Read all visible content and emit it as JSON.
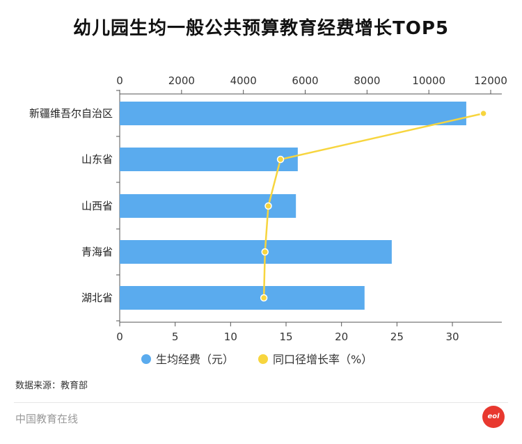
{
  "chart_data": {
    "type": "bar+line",
    "title": "幼儿园生均一般公共预算教育经费增长TOP5",
    "categories": [
      "新疆维吾尔自治区",
      "山东省",
      "山西省",
      "青海省",
      "湖北省"
    ],
    "series": [
      {
        "name": "生均经费（元）",
        "type": "bar",
        "axis": "top",
        "color": "#5aabee",
        "values": [
          11210,
          5760,
          5700,
          8800,
          7920
        ]
      },
      {
        "name": "同口径增长率（%）",
        "type": "line",
        "axis": "bottom",
        "color": "#f7d53e",
        "values": [
          32.8,
          14.5,
          13.4,
          13.1,
          13.0
        ]
      }
    ],
    "top_axis": {
      "range": [
        0,
        12000
      ],
      "ticks": [
        0,
        2000,
        4000,
        6000,
        8000,
        10000,
        12000
      ]
    },
    "bottom_axis": {
      "range": [
        0,
        30
      ],
      "ticks": [
        0,
        5,
        10,
        15,
        20,
        25,
        30
      ]
    },
    "legend": "bottom",
    "grid": false
  },
  "source": "数据来源：教育部",
  "footer": "中国教育在线",
  "logo_text": "eol"
}
